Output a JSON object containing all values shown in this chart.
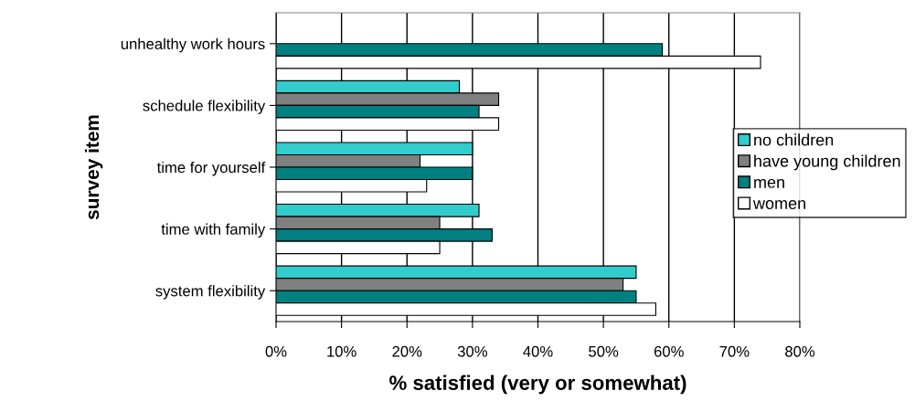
{
  "chart_data": {
    "type": "bar",
    "orientation": "horizontal",
    "xlabel": "% satisfied (very or somewhat)",
    "ylabel": "survey item",
    "categories": [
      "unhealthy work hours",
      "schedule flexibility",
      "time for yourself",
      "time with family",
      "system flexibility"
    ],
    "series": [
      {
        "name": "no children",
        "color": "#33cccc",
        "values": [
          null,
          28,
          30,
          31,
          55
        ]
      },
      {
        "name": "have young children",
        "color": "#808080",
        "values": [
          null,
          34,
          22,
          25,
          53
        ]
      },
      {
        "name": "men",
        "color": "#008080",
        "values": [
          59,
          31,
          30,
          33,
          55
        ]
      },
      {
        "name": "women",
        "color": "#ffffff",
        "values": [
          74,
          34,
          23,
          25,
          58
        ]
      }
    ],
    "xlim": [
      0,
      80
    ],
    "xticks": [
      {
        "value": 0,
        "label": "0%"
      },
      {
        "value": 10,
        "label": "10%"
      },
      {
        "value": 20,
        "label": "20%"
      },
      {
        "value": 30,
        "label": "30%"
      },
      {
        "value": 40,
        "label": "40%"
      },
      {
        "value": 50,
        "label": "50%"
      },
      {
        "value": 60,
        "label": "60%"
      },
      {
        "value": 70,
        "label": "70%"
      },
      {
        "value": 80,
        "label": "80%"
      }
    ],
    "grid": "x",
    "legend": "right"
  }
}
